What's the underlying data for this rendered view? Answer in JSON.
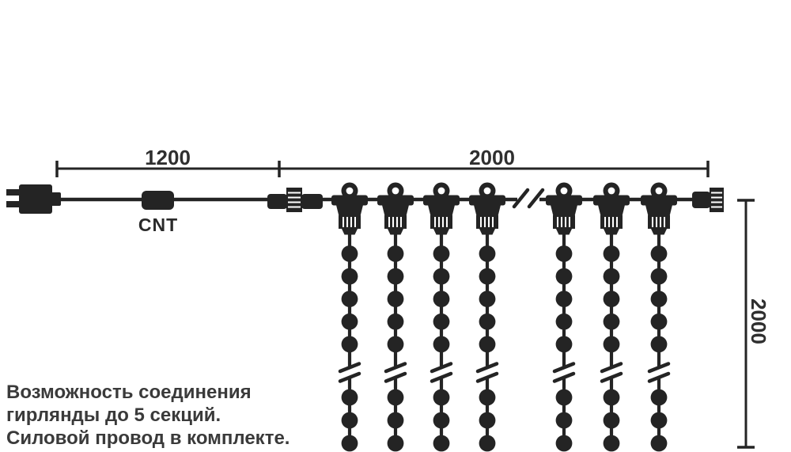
{
  "diagram": {
    "dimensions": {
      "lead_length_label": "1200",
      "curtain_width_label": "2000",
      "drop_length_label": "2000"
    },
    "controller_label": "CNT",
    "structure": {
      "strand_count": 7,
      "beads_above_break": 5,
      "beads_below_break": 3
    },
    "colors": {
      "ink": "#242424",
      "text": "#3a3a3a",
      "background": "#ffffff"
    }
  },
  "note": {
    "line1": "Возможность соединения",
    "line2": "гирлянды до 5 секций.",
    "line3": "Силовой провод в комплекте."
  }
}
